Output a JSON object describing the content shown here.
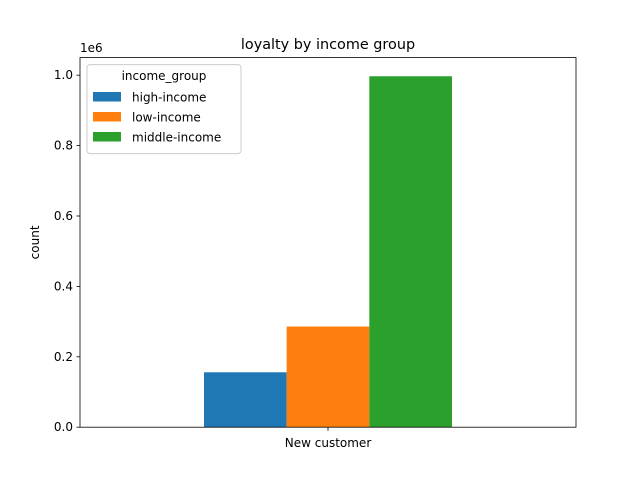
{
  "chart_data": {
    "type": "bar",
    "title": "loyalty by income group",
    "xlabel": "",
    "ylabel": "count",
    "offset_text": "1e6",
    "categories": [
      "New customer"
    ],
    "series": [
      {
        "name": "high-income",
        "values": [
          156000
        ],
        "color": "#1f77b4"
      },
      {
        "name": "low-income",
        "values": [
          286000
        ],
        "color": "#ff7f0e"
      },
      {
        "name": "middle-income",
        "values": [
          997000
        ],
        "color": "#2ca02c"
      }
    ],
    "ylim": [
      0,
      1050000
    ],
    "yticks": [
      {
        "value": 0,
        "label": "0.0"
      },
      {
        "value": 200000,
        "label": "0.2"
      },
      {
        "value": 400000,
        "label": "0.4"
      },
      {
        "value": 600000,
        "label": "0.6"
      },
      {
        "value": 800000,
        "label": "0.8"
      },
      {
        "value": 1000000,
        "label": "1.0"
      }
    ],
    "grid": false,
    "legend": {
      "title": "income_group",
      "placement": "top-left"
    }
  }
}
